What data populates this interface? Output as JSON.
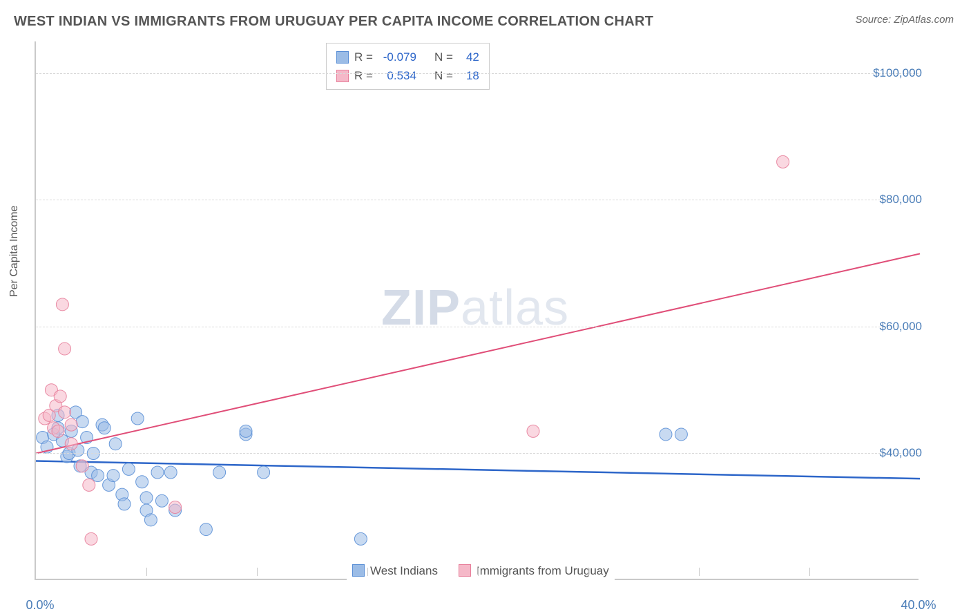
{
  "title": "WEST INDIAN VS IMMIGRANTS FROM URUGUAY PER CAPITA INCOME CORRELATION CHART",
  "source": "Source: ZipAtlas.com",
  "ylabel": "Per Capita Income",
  "watermark_a": "ZIP",
  "watermark_b": "atlas",
  "chart": {
    "type": "scatter",
    "background_color": "#ffffff",
    "grid_color": "#d9d9d9",
    "axis_color": "#c9c9c9",
    "tick_label_color": "#4a7db8",
    "label_fontsize": 16,
    "tick_fontsize": 17,
    "xlim": [
      0,
      40
    ],
    "ylim": [
      20000,
      105000
    ],
    "x_ticks": [
      0,
      40
    ],
    "x_tick_labels": [
      "0.0%",
      "40.0%"
    ],
    "x_minor_ticks": [
      5,
      10,
      15,
      20,
      25,
      30,
      35
    ],
    "y_ticks": [
      40000,
      60000,
      80000,
      100000
    ],
    "y_tick_labels": [
      "$40,000",
      "$60,000",
      "$80,000",
      "$100,000"
    ],
    "marker_radius": 9,
    "marker_opacity": 0.55,
    "marker_stroke_opacity": 0.9,
    "series": [
      {
        "name": "West Indians",
        "color_fill": "#9bbce6",
        "color_stroke": "#5a8fd6",
        "r": -0.079,
        "n": 42,
        "trend": {
          "x1": 0,
          "y1": 38800,
          "x2": 40,
          "y2": 36000,
          "color": "#2d66c9",
          "width": 2.5
        },
        "points": [
          [
            0.3,
            42500
          ],
          [
            0.5,
            41000
          ],
          [
            0.8,
            43000
          ],
          [
            1.0,
            44000
          ],
          [
            1.0,
            46000
          ],
          [
            1.2,
            42000
          ],
          [
            1.4,
            39500
          ],
          [
            1.5,
            40000
          ],
          [
            1.6,
            43500
          ],
          [
            1.8,
            46500
          ],
          [
            1.9,
            40500
          ],
          [
            2.0,
            38000
          ],
          [
            2.1,
            45000
          ],
          [
            2.3,
            42500
          ],
          [
            2.5,
            37000
          ],
          [
            2.6,
            40000
          ],
          [
            2.8,
            36500
          ],
          [
            3.0,
            44500
          ],
          [
            3.1,
            44000
          ],
          [
            3.3,
            35000
          ],
          [
            3.5,
            36500
          ],
          [
            3.6,
            41500
          ],
          [
            3.9,
            33500
          ],
          [
            4.0,
            32000
          ],
          [
            4.2,
            37500
          ],
          [
            4.6,
            45500
          ],
          [
            4.8,
            35500
          ],
          [
            5.0,
            31000
          ],
          [
            5.0,
            33000
          ],
          [
            5.2,
            29500
          ],
          [
            5.5,
            37000
          ],
          [
            5.7,
            32500
          ],
          [
            6.1,
            37000
          ],
          [
            6.3,
            31000
          ],
          [
            7.7,
            28000
          ],
          [
            8.3,
            37000
          ],
          [
            9.5,
            43000
          ],
          [
            9.5,
            43500
          ],
          [
            10.3,
            37000
          ],
          [
            14.7,
            26500
          ],
          [
            28.5,
            43000
          ],
          [
            29.2,
            43000
          ]
        ]
      },
      {
        "name": "Immigrants from Uruguay",
        "color_fill": "#f5b8c8",
        "color_stroke": "#e77e9a",
        "r": 0.534,
        "n": 18,
        "trend": {
          "x1": 0,
          "y1": 40000,
          "x2": 40,
          "y2": 71500,
          "color": "#e04e78",
          "width": 2
        },
        "points": [
          [
            0.4,
            45500
          ],
          [
            0.6,
            46000
          ],
          [
            0.7,
            50000
          ],
          [
            0.8,
            44000
          ],
          [
            0.9,
            47500
          ],
          [
            1.0,
            43500
          ],
          [
            1.1,
            49000
          ],
          [
            1.2,
            63500
          ],
          [
            1.3,
            46500
          ],
          [
            1.3,
            56500
          ],
          [
            1.6,
            44500
          ],
          [
            1.6,
            41500
          ],
          [
            2.1,
            38000
          ],
          [
            2.4,
            35000
          ],
          [
            2.5,
            26500
          ],
          [
            6.3,
            31500
          ],
          [
            22.5,
            43500
          ],
          [
            33.8,
            86000
          ]
        ]
      }
    ]
  },
  "stat_box": {
    "rows": [
      {
        "swatch_fill": "#9bbce6",
        "swatch_stroke": "#5a8fd6",
        "r_label": "R =",
        "r_val": "-0.079",
        "n_label": "N =",
        "n_val": "42"
      },
      {
        "swatch_fill": "#f5b8c8",
        "swatch_stroke": "#e77e9a",
        "r_label": "R =",
        "r_val": "0.534",
        "n_label": "N =",
        "n_val": "18"
      }
    ]
  },
  "legend": [
    {
      "swatch_fill": "#9bbce6",
      "swatch_stroke": "#5a8fd6",
      "label": "West Indians"
    },
    {
      "swatch_fill": "#f5b8c8",
      "swatch_stroke": "#e77e9a",
      "label": "Immigrants from Uruguay"
    }
  ]
}
